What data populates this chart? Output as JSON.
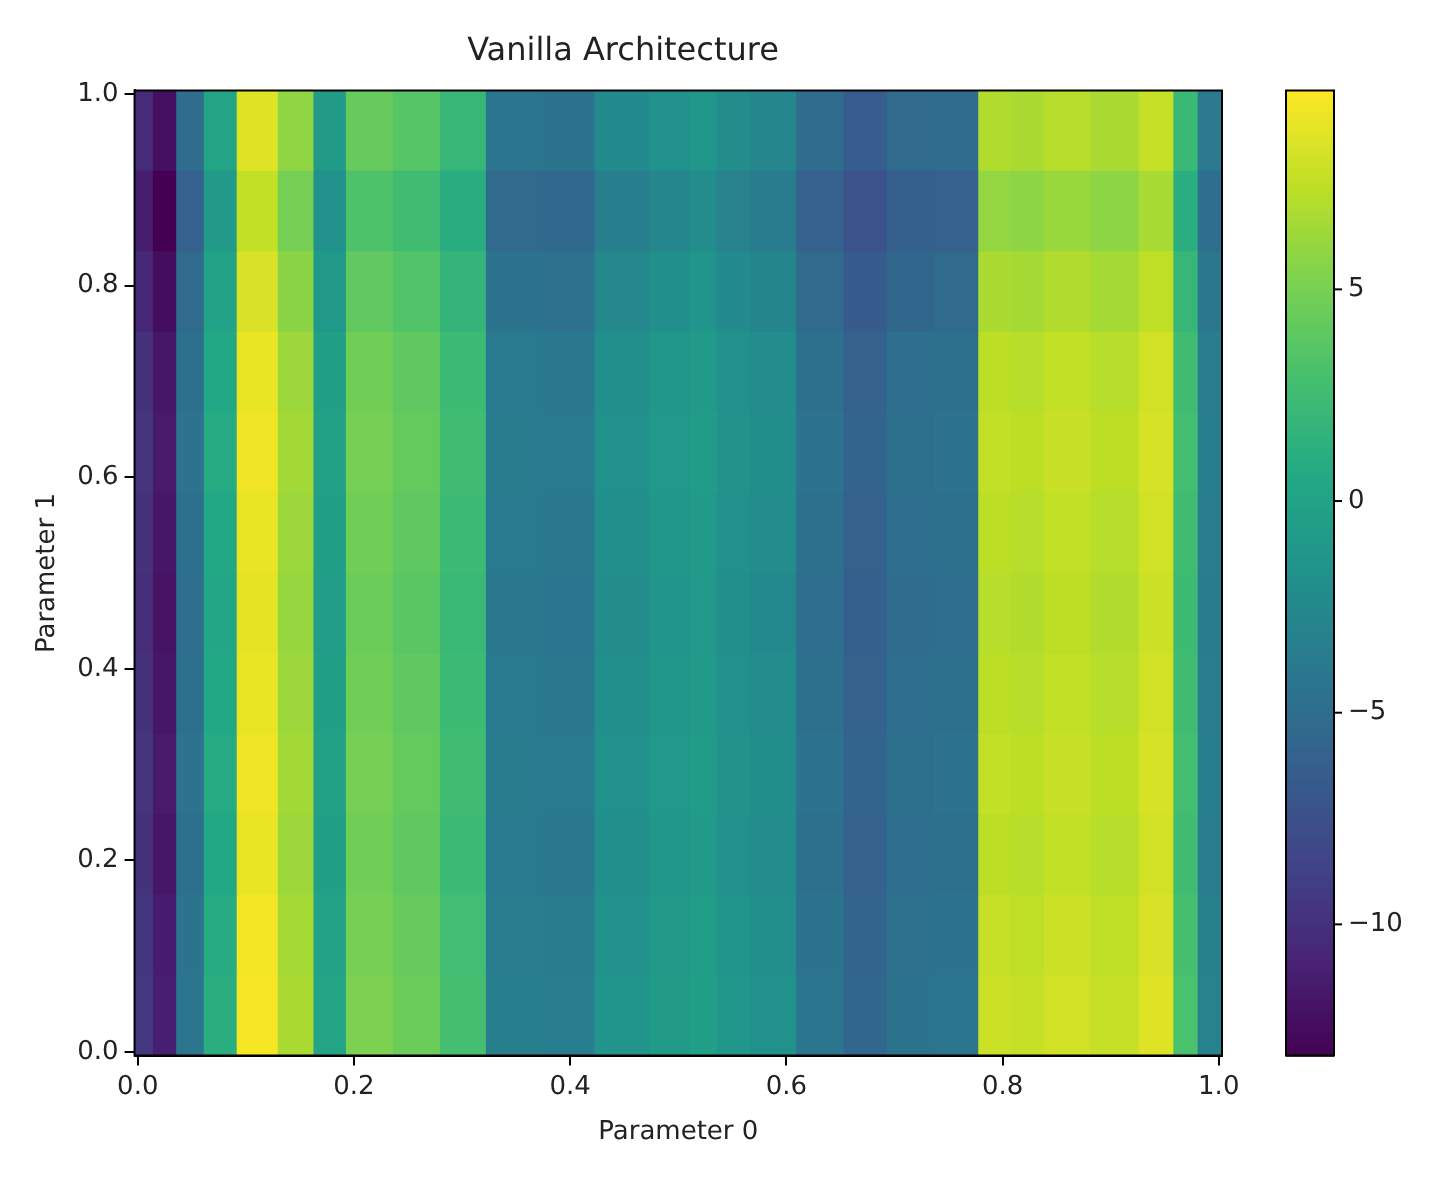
{
  "chart_data": {
    "type": "heatmap",
    "title": "Vanilla Architecture",
    "xlabel": "Parameter 0",
    "ylabel": "Parameter 1",
    "x": [
      0.005,
      0.023,
      0.048,
      0.074,
      0.109,
      0.15,
      0.175,
      0.21,
      0.262,
      0.297,
      0.347,
      0.397,
      0.448,
      0.498,
      0.523,
      0.548,
      0.584,
      0.634,
      0.672,
      0.713,
      0.76,
      0.795,
      0.82,
      0.856,
      0.906,
      0.946,
      0.97,
      0.991
    ],
    "cells": [
      [
        -10.3,
        -12.1,
        -5.1,
        0.2,
        8.6,
        5.9,
        -0.7,
        4.3,
        3.6,
        2.0,
        -4.2,
        -4.4,
        -2.3,
        -1.6,
        -1.2,
        -2.1,
        -2.6,
        -5.1,
        -6.4,
        -5.3,
        -5.1,
        7.0,
        6.8,
        7.2,
        6.8,
        7.7,
        2.2,
        -3.9
      ],
      [
        -11.3,
        -13.1,
        -6.1,
        -0.8,
        7.6,
        4.9,
        -1.7,
        3.3,
        2.6,
        1.0,
        -5.2,
        -5.4,
        -3.3,
        -2.6,
        -2.2,
        -3.1,
        -3.6,
        -6.1,
        -7.4,
        -6.3,
        -6.1,
        6.0,
        5.8,
        6.2,
        5.8,
        6.7,
        1.2,
        -4.9
      ],
      [
        -10.5,
        -12.3,
        -5.3,
        0.0,
        8.4,
        5.7,
        -0.9,
        4.1,
        3.4,
        1.8,
        -4.4,
        -4.6,
        -2.5,
        -1.8,
        -1.4,
        -2.3,
        -2.8,
        -5.3,
        -6.6,
        -5.5,
        -5.3,
        6.8,
        6.6,
        7.0,
        6.6,
        7.5,
        2.0,
        -4.1
      ],
      [
        -9.9,
        -11.7,
        -4.7,
        0.6,
        9.0,
        6.3,
        -0.3,
        4.7,
        4.0,
        2.4,
        -3.8,
        -4.0,
        -1.9,
        -1.2,
        -0.8,
        -1.7,
        -2.2,
        -4.7,
        -6.0,
        -4.9,
        -4.7,
        7.4,
        7.2,
        7.6,
        7.2,
        8.1,
        2.6,
        -3.5
      ],
      [
        -9.7,
        -11.5,
        -4.5,
        0.8,
        9.2,
        6.5,
        -0.1,
        4.9,
        4.2,
        2.6,
        -3.6,
        -3.8,
        -1.7,
        -1.0,
        -0.6,
        -1.5,
        -2.0,
        -4.5,
        -5.8,
        -4.7,
        -4.5,
        7.6,
        7.4,
        7.8,
        7.4,
        8.3,
        2.8,
        -3.3
      ],
      [
        -9.9,
        -11.7,
        -4.7,
        0.6,
        9.0,
        6.3,
        -0.3,
        4.7,
        4.0,
        2.4,
        -3.8,
        -4.0,
        -1.9,
        -1.2,
        -0.8,
        -1.7,
        -2.2,
        -4.7,
        -6.0,
        -4.9,
        -4.7,
        7.4,
        7.2,
        7.6,
        7.2,
        8.1,
        2.6,
        -3.5
      ],
      [
        -10.1,
        -11.9,
        -4.9,
        0.4,
        8.8,
        6.1,
        -0.5,
        4.5,
        3.8,
        2.2,
        -4.0,
        -4.2,
        -2.1,
        -1.4,
        -1.0,
        -1.9,
        -2.4,
        -4.9,
        -6.2,
        -5.1,
        -4.9,
        7.2,
        7.0,
        7.4,
        7.0,
        7.9,
        2.4,
        -3.7
      ],
      [
        -9.9,
        -11.7,
        -4.7,
        0.6,
        9.0,
        6.3,
        -0.3,
        4.7,
        4.0,
        2.4,
        -3.8,
        -4.0,
        -1.9,
        -1.2,
        -0.8,
        -1.7,
        -2.2,
        -4.7,
        -6.0,
        -4.9,
        -4.7,
        7.4,
        7.2,
        7.6,
        7.2,
        8.1,
        2.6,
        -3.5
      ],
      [
        -9.7,
        -11.5,
        -4.5,
        0.8,
        9.2,
        6.5,
        -0.1,
        4.9,
        4.2,
        2.6,
        -3.6,
        -3.8,
        -1.7,
        -1.0,
        -0.6,
        -1.5,
        -2.0,
        -4.5,
        -5.8,
        -4.7,
        -4.5,
        7.6,
        7.4,
        7.8,
        7.4,
        8.3,
        2.8,
        -3.3
      ],
      [
        -9.9,
        -11.7,
        -4.7,
        0.6,
        9.0,
        6.3,
        -0.3,
        4.7,
        4.0,
        2.4,
        -3.8,
        -4.0,
        -1.9,
        -1.2,
        -0.8,
        -1.7,
        -2.2,
        -4.7,
        -6.0,
        -4.9,
        -4.7,
        7.4,
        7.2,
        7.6,
        7.2,
        8.1,
        2.6,
        -3.5
      ],
      [
        -9.6,
        -11.4,
        -4.4,
        0.9,
        9.3,
        6.6,
        0.0,
        5.0,
        4.3,
        2.7,
        -3.5,
        -3.7,
        -1.6,
        -0.9,
        -0.5,
        -1.4,
        -1.9,
        -4.4,
        -5.7,
        -4.6,
        -4.4,
        7.7,
        7.5,
        7.9,
        7.5,
        8.4,
        2.9,
        -3.2
      ],
      [
        -9.4,
        -11.2,
        -4.2,
        1.1,
        9.5,
        6.8,
        0.2,
        5.2,
        4.5,
        2.9,
        -3.3,
        -3.5,
        -1.4,
        -0.7,
        -0.3,
        -1.2,
        -1.7,
        -4.2,
        -5.5,
        -4.4,
        -4.2,
        7.9,
        7.7,
        8.1,
        7.7,
        8.6,
        3.1,
        -3.0
      ]
    ],
    "xlim": [
      -0.003,
      1.003
    ],
    "xticks": [
      {
        "value": 0,
        "label": "0.0"
      },
      {
        "value": 0.2,
        "label": "0.2"
      },
      {
        "value": 0.4,
        "label": "0.4"
      },
      {
        "value": 0.6,
        "label": "0.6"
      },
      {
        "value": 0.8,
        "label": "0.8"
      },
      {
        "value": 1,
        "label": "1.0"
      }
    ],
    "ylim": [
      -0.004,
      1.004
    ],
    "yticks": [
      {
        "value": 0,
        "label": "0.0"
      },
      {
        "value": 0.2,
        "label": "0.2"
      },
      {
        "value": 0.4,
        "label": "0.4"
      },
      {
        "value": 0.6,
        "label": "0.6"
      },
      {
        "value": 0.8,
        "label": "0.8"
      },
      {
        "value": 1,
        "label": "1.0"
      }
    ],
    "clim": [
      -13.1,
      9.7
    ],
    "cticks": [
      {
        "value": -10,
        "label": "−10"
      },
      {
        "value": -5,
        "label": "−5"
      },
      0,
      5
    ]
  }
}
